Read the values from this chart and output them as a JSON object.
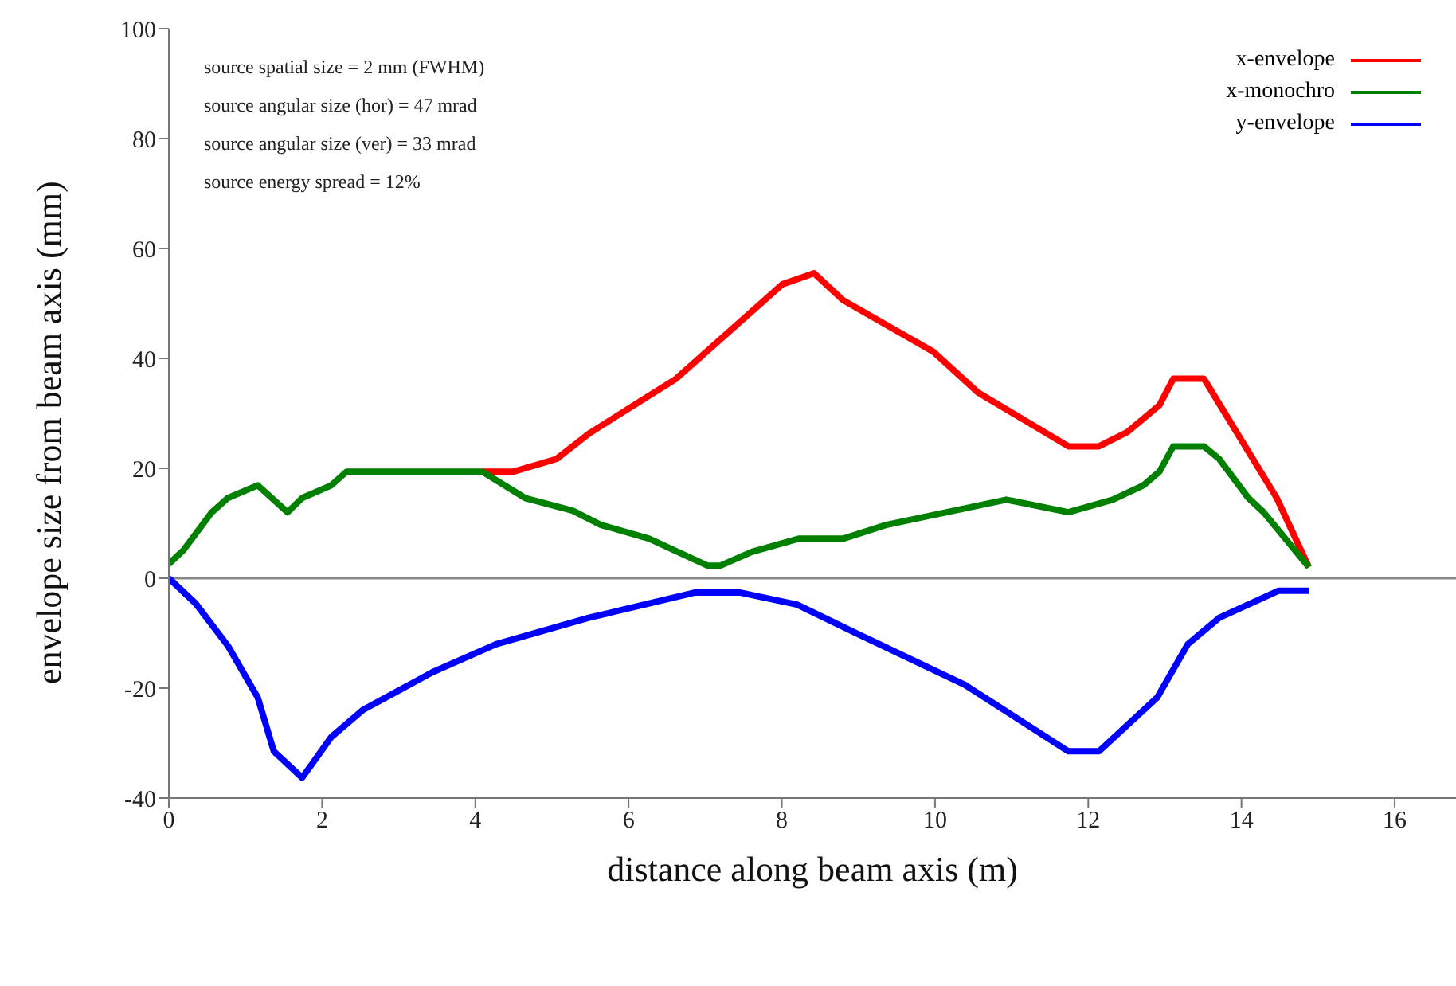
{
  "chart_data": {
    "type": "line",
    "xlabel": "distance along beam axis (m)",
    "ylabel": "envelope size from beam axis (mm)",
    "xlim": [
      0,
      16.8
    ],
    "xticks": [
      0,
      2,
      4,
      6,
      8,
      10,
      12,
      14,
      16
    ],
    "ylim": [
      -40,
      100
    ],
    "yticks": [
      -40,
      -20,
      0,
      20,
      40,
      60,
      80,
      100
    ],
    "grid": false,
    "legend": "top right",
    "ref_lines": [
      {
        "axis": "y",
        "value": 0,
        "color": "#888888"
      }
    ],
    "annotations": [
      "source spatial size = 2 mm (FWHM)",
      "source angular size (hor) = 47 mrad",
      "source angular size (ver) = 33 mrad",
      "source energy spread = 12%"
    ],
    "series": [
      {
        "name": "x-envelope",
        "color": "#ff0000",
        "x": [
          4.09,
          4.5,
          5.06,
          5.48,
          6.62,
          8.01,
          8.42,
          8.8,
          9.98,
          10.56,
          11.74,
          12.14,
          12.51,
          12.93,
          13.11,
          13.51,
          14.46,
          14.88
        ],
        "values": [
          19.4,
          19.4,
          21.7,
          26.3,
          36.3,
          53.5,
          55.5,
          50.6,
          41.2,
          33.8,
          24,
          24,
          26.6,
          31.5,
          36.3,
          36.3,
          14.6,
          2
        ]
      },
      {
        "name": "x-monochro",
        "color": "#008000",
        "x": [
          0,
          0.19,
          0.56,
          0.77,
          1.16,
          1.55,
          1.74,
          2.12,
          2.32,
          4.09,
          4.65,
          5.27,
          5.64,
          6.27,
          7.03,
          7.2,
          7.61,
          8.22,
          8.8,
          9.36,
          10.93,
          11.74,
          12.32,
          12.72,
          12.93,
          13.11,
          13.51,
          13.71,
          14.09,
          14.29,
          14.88
        ],
        "values": [
          2.6,
          5.1,
          12,
          14.6,
          16.9,
          12,
          14.6,
          16.9,
          19.4,
          19.4,
          14.6,
          12.3,
          9.7,
          7.2,
          2.3,
          2.3,
          4.8,
          7.2,
          7.2,
          9.7,
          14.3,
          12,
          14.3,
          16.9,
          19.4,
          24,
          24,
          21.7,
          14.6,
          12,
          2
        ]
      },
      {
        "name": "y-envelope",
        "color": "#0000ff",
        "x": [
          0,
          0.35,
          0.77,
          1.16,
          1.37,
          1.74,
          2.12,
          2.53,
          3.44,
          4.27,
          5.48,
          6.87,
          7.45,
          8.2,
          9.0,
          10.39,
          11.74,
          12.14,
          12.9,
          13.3,
          13.71,
          14.48,
          14.88
        ],
        "values": [
          0,
          -4.6,
          -12.3,
          -21.7,
          -31.5,
          -36.3,
          -28.9,
          -24,
          -17.1,
          -12,
          -7.2,
          -2.6,
          -2.6,
          -4.8,
          -10.2,
          -19.4,
          -31.5,
          -31.5,
          -21.7,
          -12,
          -7.2,
          -2.3,
          -2.3
        ]
      }
    ]
  }
}
